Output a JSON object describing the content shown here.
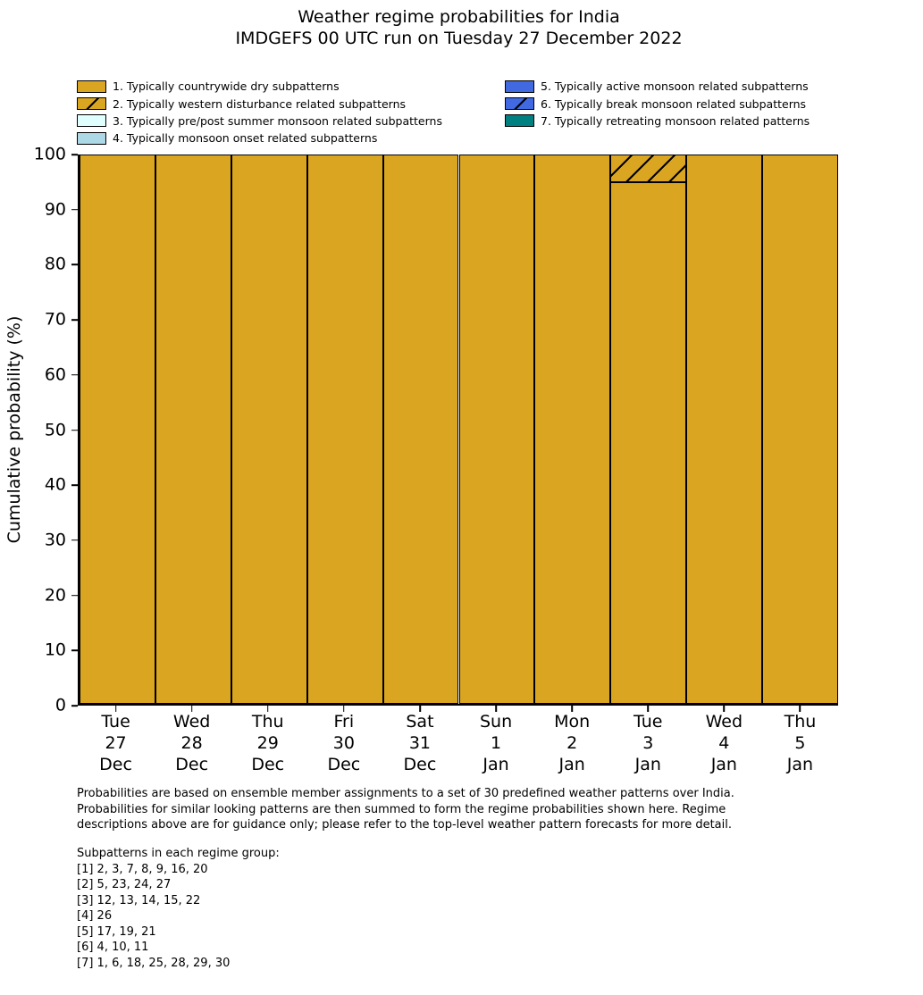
{
  "title": {
    "line1": "Weather regime probabilities for India",
    "line2": "IMDGEFS 00 UTC run on Tuesday 27 December 2022"
  },
  "legend": {
    "left_series_indices": [
      0,
      1,
      2,
      3
    ],
    "right_series_indices": [
      4,
      5,
      6
    ]
  },
  "chart_data": {
    "type": "bar",
    "stacked": true,
    "title": "Weather regime probabilities for India",
    "subtitle": "IMDGEFS 00 UTC run on Tuesday 27 December 2022",
    "ylabel": "Cumulative probability (%)",
    "ylim": [
      0,
      100
    ],
    "yticks": [
      0,
      10,
      20,
      30,
      40,
      50,
      60,
      70,
      80,
      90,
      100
    ],
    "grid": false,
    "legend_position": "top",
    "bar_edge_color": "#000000",
    "hatch_color": "#000000",
    "categories": [
      {
        "day": "Tue",
        "date": "27",
        "month": "Dec"
      },
      {
        "day": "Wed",
        "date": "28",
        "month": "Dec"
      },
      {
        "day": "Thu",
        "date": "29",
        "month": "Dec"
      },
      {
        "day": "Fri",
        "date": "30",
        "month": "Dec"
      },
      {
        "day": "Sat",
        "date": "31",
        "month": "Dec"
      },
      {
        "day": "Sun",
        "date": "1",
        "month": "Jan"
      },
      {
        "day": "Mon",
        "date": "2",
        "month": "Jan"
      },
      {
        "day": "Tue",
        "date": "3",
        "month": "Jan"
      },
      {
        "day": "Wed",
        "date": "4",
        "month": "Jan"
      },
      {
        "day": "Thu",
        "date": "5",
        "month": "Jan"
      }
    ],
    "series": [
      {
        "name": "1. Typically countrywide dry subpatterns",
        "color": "#DAA520",
        "hatch": false,
        "values": [
          100,
          100,
          100,
          100,
          100,
          100,
          100,
          95,
          100,
          100
        ]
      },
      {
        "name": "2. Typically western disturbance related subpatterns",
        "color": "#DAA520",
        "hatch": true,
        "values": [
          0,
          0,
          0,
          0,
          0,
          0,
          0,
          5,
          0,
          0
        ]
      },
      {
        "name": "3. Typically pre/post summer monsoon related subpatterns",
        "color": "#E0FFFF",
        "hatch": false,
        "values": [
          0,
          0,
          0,
          0,
          0,
          0,
          0,
          0,
          0,
          0
        ]
      },
      {
        "name": "4. Typically monsoon onset related subpatterns",
        "color": "#ADD8E6",
        "hatch": false,
        "values": [
          0,
          0,
          0,
          0,
          0,
          0,
          0,
          0,
          0,
          0
        ]
      },
      {
        "name": "5. Typically active monsoon related subpatterns",
        "color": "#4169E1",
        "hatch": false,
        "values": [
          0,
          0,
          0,
          0,
          0,
          0,
          0,
          0,
          0,
          0
        ]
      },
      {
        "name": "6. Typically break monsoon related subpatterns",
        "color": "#4169E1",
        "hatch": true,
        "values": [
          0,
          0,
          0,
          0,
          0,
          0,
          0,
          0,
          0,
          0
        ]
      },
      {
        "name": "7. Typically retreating monsoon related patterns",
        "color": "#008080",
        "hatch": false,
        "values": [
          0,
          0,
          0,
          0,
          0,
          0,
          0,
          0,
          0,
          0
        ]
      }
    ]
  },
  "footer": {
    "paragraph_lines": [
      "Probabilities are based on ensemble member assignments to a set of 30 predefined weather patterns over India.",
      "Probabilities for similar looking patterns are then summed to form the regime probabilities shown here. Regime",
      "descriptions above are for guidance only; please refer to the top-level weather pattern forecasts for more detail."
    ],
    "subpatterns_title": "Subpatterns in each regime group:",
    "subpattern_lines": [
      "[1] 2, 3, 7, 8, 9, 16, 20",
      "[2] 5, 23, 24, 27",
      "[3] 12, 13, 14, 15, 22",
      "[4] 26",
      "[5] 17, 19, 21",
      "[6] 4, 10, 11",
      "[7] 1, 6, 18, 25, 28, 29, 30"
    ]
  }
}
